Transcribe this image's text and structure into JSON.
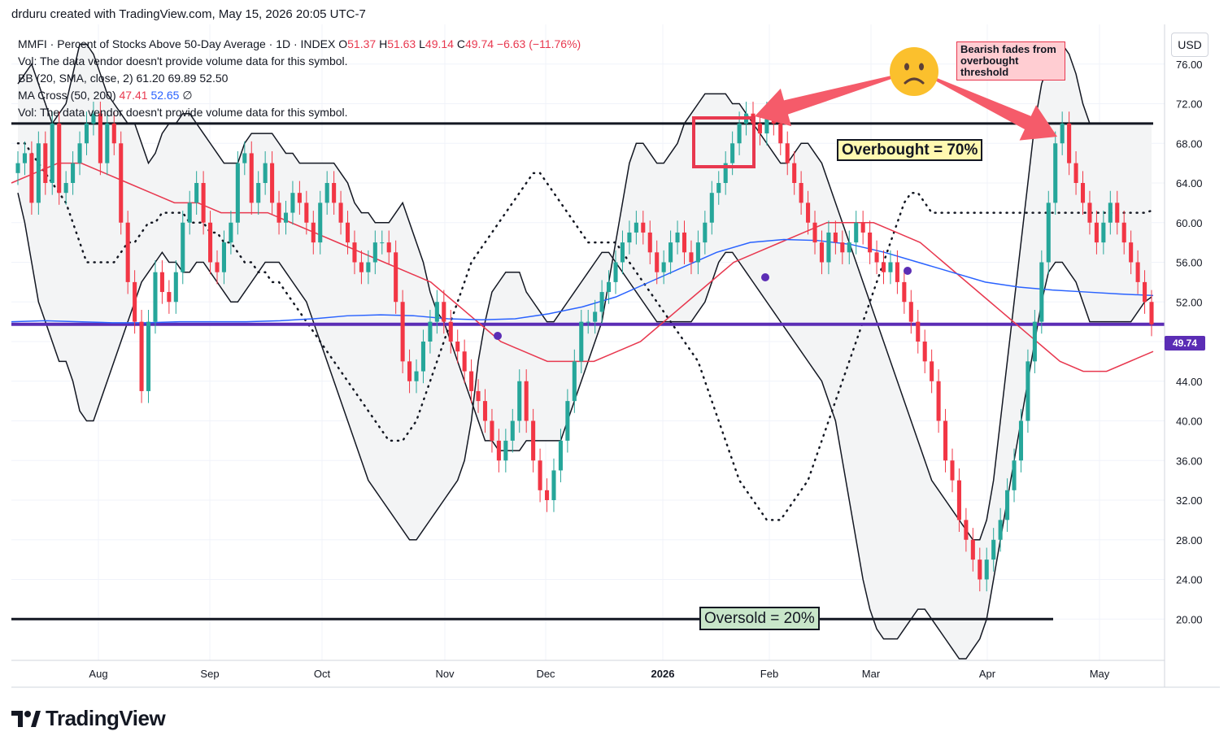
{
  "header": {
    "credit": "drduru created with TradingView.com, May 15, 2026 20:05 UTC-7"
  },
  "legend": {
    "symbol": "MMFI · Percent of Stocks Above 50-Day Average · 1D · INDEX",
    "o_label": "O",
    "o": "51.37",
    "h_label": "H",
    "h": "51.63",
    "l_label": "L",
    "l": "49.14",
    "c_label": "C",
    "c": "49.74",
    "change": "−6.63 (−11.76%)",
    "vol1": "Vol: The data vendor doesn't provide volume data for this symbol.",
    "bb_name": "BB (20, SMA, close, 2)",
    "bb_basis": "61.20",
    "bb_upper": "69.89",
    "bb_lower": "52.50",
    "ma_name": "MA Cross (50, 200)",
    "ma_fast": "47.41",
    "ma_slow": "52.65",
    "ma_sym": "∅",
    "vol2": "Vol: The data vendor doesn't provide volume data for this symbol."
  },
  "currency_button": "USD",
  "last_price": "49.74",
  "annotations": {
    "overbought": "Overbought = 70%",
    "oversold": "Oversold = 20%",
    "bearish": "Bearish fades from overbought threshold",
    "emoji_icon": "frowning-face-icon"
  },
  "branding": {
    "logo": "TradingView"
  },
  "colors": {
    "up": "#26a69a",
    "down": "#f23645",
    "ma50": "#e8384f",
    "ma200": "#2962ff",
    "price_line": "#5b2db5",
    "band_fill": "#f3f4f5",
    "arrow": "#f55b6a"
  },
  "chart_data": {
    "type": "candlestick",
    "x_ticks": [
      "Aug",
      "Sep",
      "Oct",
      "Nov",
      "Dec",
      "2026",
      "Feb",
      "Mar",
      "Apr",
      "May"
    ],
    "y_ticks": [
      "76.00",
      "72.00",
      "68.00",
      "64.00",
      "60.00",
      "56.00",
      "52.00",
      "48.00",
      "44.00",
      "40.00",
      "36.00",
      "32.00",
      "28.00",
      "24.00",
      "20.00"
    ],
    "ylim": [
      16,
      80
    ],
    "levels": {
      "overbought": 70,
      "oversold": 20,
      "last_close": 49.74
    },
    "close": [
      66,
      67,
      62,
      68,
      64,
      70,
      63,
      64,
      66,
      68,
      70,
      71,
      66,
      70,
      68,
      60,
      54,
      50,
      43,
      50,
      55,
      53,
      52,
      55,
      60,
      62,
      64,
      60,
      56,
      55,
      58,
      60,
      66,
      67,
      62,
      64,
      66,
      62,
      60,
      61,
      63,
      62,
      60,
      58,
      62,
      64,
      62,
      60,
      58,
      56,
      55,
      56,
      58,
      58,
      57,
      52,
      46,
      44,
      45,
      48,
      50,
      52,
      50,
      48,
      47,
      45,
      43,
      42,
      40,
      38,
      36,
      38,
      40,
      44,
      40,
      36,
      33,
      32,
      35,
      38,
      42,
      46,
      50,
      50,
      51,
      53,
      54,
      56,
      58,
      59,
      60,
      59,
      57,
      55,
      56,
      58,
      59,
      57,
      56,
      58,
      60,
      63,
      64,
      66,
      68,
      70,
      71,
      70,
      69,
      71,
      70,
      68,
      66,
      64,
      62,
      60,
      58,
      56,
      59,
      58,
      57,
      58,
      60,
      59,
      57,
      56,
      55,
      56,
      54,
      52,
      50,
      48,
      46,
      44,
      40,
      36,
      34,
      30,
      28,
      26,
      24,
      26,
      28,
      30,
      33,
      36,
      40,
      46,
      50,
      56,
      62,
      68,
      70,
      66,
      64,
      62,
      60,
      58,
      60,
      62,
      60,
      58,
      56,
      54,
      52,
      49.74
    ],
    "bb_upper": [
      74,
      75,
      76,
      74,
      72,
      70,
      71,
      72,
      75,
      78,
      78,
      77,
      75,
      73,
      72,
      71,
      70,
      70,
      68,
      66,
      67,
      69,
      70,
      70,
      71,
      71,
      70,
      69,
      68,
      67,
      66,
      66,
      66,
      68,
      69,
      69,
      69,
      69,
      68,
      67,
      67,
      66,
      66,
      66,
      66,
      66,
      66,
      65,
      64,
      62,
      61,
      61,
      60,
      60,
      60,
      61,
      62,
      60,
      58,
      56,
      53,
      51,
      50,
      48,
      46,
      44,
      42,
      40,
      38,
      38,
      37,
      37,
      37,
      37,
      38,
      38,
      38,
      38,
      38,
      38,
      40,
      42,
      44,
      46,
      48,
      50,
      54,
      58,
      62,
      66,
      68,
      68,
      67,
      66,
      66,
      67,
      68,
      70,
      71,
      72,
      73,
      73,
      73,
      73,
      72,
      72,
      71,
      70,
      69,
      68,
      67,
      66,
      66,
      67,
      68,
      68,
      67,
      66,
      64,
      62,
      60,
      58,
      56,
      54,
      52,
      50,
      48,
      46,
      44,
      42,
      40,
      38,
      36,
      34,
      33,
      32,
      31,
      30,
      29,
      28,
      28,
      30,
      34,
      40,
      46,
      52,
      58,
      64,
      70,
      74,
      76,
      78,
      78,
      77,
      75,
      72,
      70,
      70,
      70,
      70,
      70,
      70,
      70,
      70,
      70,
      70
    ],
    "bb_lower": [
      63,
      60,
      56,
      52,
      50,
      48,
      46,
      46,
      44,
      41,
      40,
      40,
      42,
      44,
      46,
      48,
      50,
      52,
      54,
      55,
      56,
      57,
      56,
      56,
      55,
      55,
      56,
      56,
      55,
      54,
      53,
      52,
      52,
      53,
      54,
      55,
      56,
      56,
      56,
      55,
      54,
      53,
      52,
      50,
      48,
      46,
      44,
      42,
      40,
      38,
      36,
      34,
      33,
      32,
      31,
      30,
      29,
      28,
      28,
      29,
      30,
      31,
      32,
      33,
      34,
      36,
      40,
      46,
      50,
      53,
      54,
      55,
      55,
      55,
      53,
      52,
      51,
      50,
      50,
      51,
      52,
      53,
      54,
      55,
      56,
      57,
      57,
      56,
      55,
      54,
      53,
      52,
      51,
      50,
      50,
      50,
      50,
      50,
      50,
      51,
      52,
      54,
      56,
      57,
      57,
      56,
      55,
      54,
      53,
      52,
      51,
      50,
      49,
      48,
      47,
      46,
      45,
      44,
      42,
      40,
      36,
      32,
      28,
      24,
      21,
      19,
      18,
      18,
      18,
      19,
      20,
      21,
      21,
      20,
      19,
      18,
      17,
      16,
      16,
      17,
      18,
      20,
      24,
      28,
      32,
      36,
      40,
      44,
      48,
      52,
      55,
      56,
      56,
      55,
      54,
      52,
      50,
      50,
      50,
      50,
      50,
      50,
      50,
      51,
      52,
      52.5
    ],
    "bb_basis": [
      68,
      68,
      67,
      66,
      65,
      64,
      63,
      62,
      60,
      58,
      56,
      56,
      56,
      56,
      56,
      57,
      58,
      58,
      59,
      60,
      60,
      61,
      61,
      61,
      61,
      60,
      60,
      60,
      59,
      59,
      58,
      58,
      57,
      56,
      56,
      55,
      55,
      54,
      54,
      53,
      52,
      51,
      50,
      49,
      48,
      47,
      46,
      45,
      44,
      43,
      42,
      41,
      40,
      39,
      38,
      38,
      38,
      39,
      40,
      42,
      44,
      46,
      48,
      50,
      52,
      54,
      56,
      57,
      58,
      59,
      60,
      61,
      62,
      63,
      64,
      65,
      65,
      64,
      63,
      62,
      61,
      60,
      59,
      58,
      58,
      58,
      58,
      58,
      57,
      56,
      55,
      54,
      53,
      52,
      51,
      50,
      49,
      48,
      47,
      46,
      44,
      42,
      40,
      38,
      36,
      34,
      33,
      32,
      31,
      30,
      30,
      30,
      31,
      32,
      33,
      34,
      36,
      38,
      40,
      42,
      44,
      46,
      48,
      50,
      52,
      54,
      56,
      58,
      60,
      62,
      63,
      63,
      62,
      61,
      61,
      61,
      61,
      61,
      61,
      61,
      61,
      61,
      61,
      61,
      61,
      61,
      61,
      61,
      61,
      61,
      61,
      61,
      61,
      61,
      61,
      61,
      61,
      61,
      61,
      61,
      61,
      61,
      61,
      61,
      61,
      61.2
    ],
    "ma50": [
      64,
      65,
      66,
      66,
      65,
      64,
      63,
      62,
      62,
      61,
      61,
      61,
      60,
      59,
      58,
      57,
      56,
      55,
      54,
      52,
      50,
      48,
      47,
      46,
      46,
      46,
      47,
      48,
      50,
      52,
      54,
      56,
      57,
      58,
      59,
      60,
      60,
      60,
      59,
      58,
      56,
      54,
      52,
      50,
      48,
      46,
      45,
      45,
      46,
      47
    ],
    "ma200": [
      50,
      50.1,
      50,
      49.9,
      49.9,
      50,
      50,
      50,
      50.1,
      50.3,
      50.6,
      50.7,
      50.6,
      50.3,
      50.2,
      50.3,
      50.8,
      51.5,
      52.5,
      54,
      55.5,
      57,
      58,
      58.3,
      58.2,
      57.8,
      57,
      56,
      55,
      54,
      53.5,
      53.2,
      53,
      52.8,
      52.65
    ]
  }
}
